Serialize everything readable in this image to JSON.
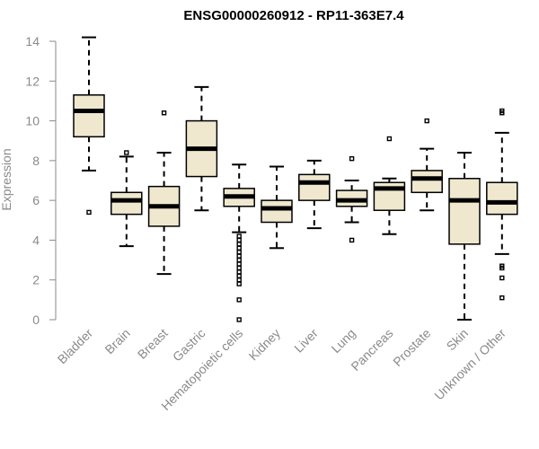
{
  "chart_data": {
    "type": "boxplot",
    "title": "ENSG00000260912 - RP11-363E7.4",
    "ylabel": "Expression",
    "xlabel": "",
    "ylim": [
      0,
      14
    ],
    "yticks": [
      0,
      2,
      4,
      6,
      8,
      10,
      12,
      14
    ],
    "categories": [
      "Bladder",
      "Brain",
      "Breast",
      "Gastric",
      "Hematopoietic cells",
      "Kidney",
      "Liver",
      "Lung",
      "Pancreas",
      "Prostate",
      "Skin",
      "Unknown / Other"
    ],
    "box_color": "#efe8cf",
    "boxes": [
      {
        "name": "Bladder",
        "whisker_low": 7.5,
        "q1": 9.2,
        "median": 10.5,
        "q3": 11.3,
        "whisker_high": 14.2,
        "outliers": [
          5.4
        ]
      },
      {
        "name": "Brain",
        "whisker_low": 3.7,
        "q1": 5.3,
        "median": 6.0,
        "q3": 6.4,
        "whisker_high": 8.2,
        "outliers": [
          8.4
        ]
      },
      {
        "name": "Breast",
        "whisker_low": 2.3,
        "q1": 4.7,
        "median": 5.7,
        "q3": 6.7,
        "whisker_high": 8.4,
        "outliers": [
          10.4
        ]
      },
      {
        "name": "Gastric",
        "whisker_low": 5.5,
        "q1": 7.2,
        "median": 8.6,
        "q3": 10.0,
        "whisker_high": 11.7,
        "outliers": []
      },
      {
        "name": "Hematopoietic cells",
        "whisker_low": 4.4,
        "q1": 5.7,
        "median": 6.2,
        "q3": 6.6,
        "whisker_high": 7.8,
        "outliers": [
          4.2,
          4.0,
          3.8,
          3.6,
          3.4,
          3.2,
          3.0,
          2.8,
          2.6,
          2.4,
          2.2,
          2.0,
          1.8,
          1.0,
          0.0
        ]
      },
      {
        "name": "Kidney",
        "whisker_low": 3.6,
        "q1": 4.9,
        "median": 5.6,
        "q3": 6.0,
        "whisker_high": 7.7,
        "outliers": []
      },
      {
        "name": "Liver",
        "whisker_low": 4.6,
        "q1": 6.0,
        "median": 6.9,
        "q3": 7.3,
        "whisker_high": 8.0,
        "outliers": []
      },
      {
        "name": "Lung",
        "whisker_low": 4.9,
        "q1": 5.7,
        "median": 6.0,
        "q3": 6.5,
        "whisker_high": 7.0,
        "outliers": [
          8.1,
          4.0
        ]
      },
      {
        "name": "Pancreas",
        "whisker_low": 4.3,
        "q1": 5.5,
        "median": 6.6,
        "q3": 6.9,
        "whisker_high": 7.1,
        "outliers": [
          9.1
        ]
      },
      {
        "name": "Prostate",
        "whisker_low": 5.5,
        "q1": 6.4,
        "median": 7.1,
        "q3": 7.5,
        "whisker_high": 8.6,
        "outliers": [
          10.0
        ]
      },
      {
        "name": "Skin",
        "whisker_low": 0.0,
        "q1": 3.8,
        "median": 6.0,
        "q3": 7.1,
        "whisker_high": 8.4,
        "outliers": []
      },
      {
        "name": "Unknown / Other",
        "whisker_low": 3.3,
        "q1": 5.3,
        "median": 5.9,
        "q3": 6.9,
        "whisker_high": 9.4,
        "outliers": [
          10.5,
          10.4,
          2.7,
          2.6,
          2.1,
          1.1
        ]
      }
    ]
  }
}
